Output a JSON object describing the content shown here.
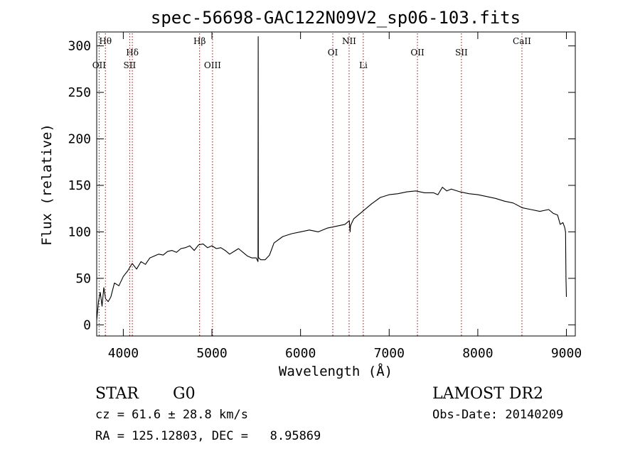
{
  "chart_data": {
    "type": "line",
    "title": "spec-56698-GAC122N09V2_sp06-103.fits",
    "xlabel": "Wavelength (Å)",
    "ylabel": "Flux (relative)",
    "xlim": [
      3700,
      9100
    ],
    "ylim": [
      -12,
      315
    ],
    "xticks": [
      4000,
      5000,
      6000,
      7000,
      8000,
      9000
    ],
    "yticks": [
      0,
      50,
      100,
      150,
      200,
      250,
      300
    ],
    "grid": false,
    "series": [
      {
        "x": [
          3700,
          3720,
          3740,
          3760,
          3780,
          3800,
          3830,
          3860,
          3900,
          3950,
          4000,
          4050,
          4100,
          4150,
          4200,
          4250,
          4300,
          4350,
          4400,
          4450,
          4500,
          4550,
          4600,
          4650,
          4700,
          4750,
          4800,
          4850,
          4900,
          4950,
          5000,
          5050,
          5100,
          5150,
          5200,
          5250,
          5300,
          5350,
          5400,
          5450,
          5500,
          5510,
          5520,
          5522,
          5524,
          5530,
          5550,
          5600,
          5650,
          5700,
          5800,
          5900,
          6000,
          6100,
          6200,
          6300,
          6400,
          6500,
          6550,
          6560,
          6563,
          6570,
          6600,
          6700,
          6800,
          6900,
          7000,
          7100,
          7200,
          7300,
          7400,
          7500,
          7550,
          7600,
          7650,
          7700,
          7800,
          7900,
          8000,
          8100,
          8200,
          8300,
          8400,
          8500,
          8600,
          8700,
          8800,
          8850,
          8900,
          8930,
          8960,
          8980,
          8990,
          8995,
          9000
        ],
        "values": [
          5,
          25,
          35,
          20,
          40,
          28,
          25,
          30,
          45,
          42,
          52,
          58,
          66,
          60,
          68,
          65,
          72,
          74,
          76,
          75,
          79,
          80,
          78,
          82,
          83,
          85,
          80,
          86,
          87,
          83,
          85,
          82,
          83,
          80,
          76,
          79,
          82,
          78,
          74,
          72,
          72,
          70,
          68,
          310,
          72,
          72,
          70,
          70,
          75,
          88,
          95,
          98,
          100,
          102,
          100,
          104,
          106,
          108,
          112,
          100,
          106,
          108,
          114,
          122,
          130,
          137,
          140,
          141,
          143,
          144,
          142,
          142,
          140,
          148,
          144,
          146,
          143,
          141,
          140,
          138,
          136,
          133,
          131,
          126,
          124,
          122,
          124,
          120,
          118,
          108,
          110,
          105,
          100,
          50,
          30
        ]
      }
    ],
    "lines": [
      {
        "label": "Hθ",
        "x": 3798,
        "row": 1
      },
      {
        "label": "OII",
        "x": 3727,
        "row": 3
      },
      {
        "label": "Hδ",
        "x": 4102,
        "row": 2
      },
      {
        "label": "SII",
        "x": 4072,
        "row": 3
      },
      {
        "label": "Hβ",
        "x": 4861,
        "row": 1
      },
      {
        "label": "OIII",
        "x": 5007,
        "row": 3
      },
      {
        "label": "OI",
        "x": 6364,
        "row": 2
      },
      {
        "label": "NII",
        "x": 6548,
        "row": 1
      },
      {
        "label": "Li",
        "x": 6708,
        "row": 3
      },
      {
        "label": "OII",
        "x": 7319,
        "row": 2
      },
      {
        "label": "SII",
        "x": 7815,
        "row": 2
      },
      {
        "label": "CaII",
        "x": 8498,
        "row": 1
      }
    ],
    "footer": {
      "class_label": "STAR",
      "subclass": "G0",
      "cz": "cz = 61.6 ± 28.8 km/s",
      "radec": "RA = 125.12803, DEC =   8.95869",
      "survey": "LAMOST DR2",
      "obsdate": "Obs-Date: 20140209"
    }
  }
}
